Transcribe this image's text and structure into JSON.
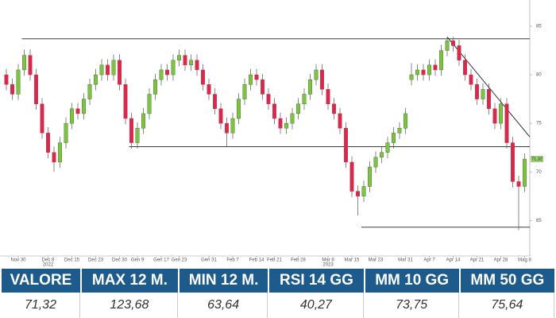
{
  "chart_data": {
    "type": "candlestick",
    "categories": [
      null,
      null,
      "Nov 30",
      null,
      null,
      null,
      null,
      "Dec 8",
      null,
      null,
      null,
      "Dec 15",
      null,
      null,
      null,
      "Dec 23",
      null,
      null,
      null,
      "Dec 30",
      null,
      null,
      "Gen 9",
      null,
      null,
      null,
      "Gen 17",
      null,
      null,
      "Gen 23",
      null,
      null,
      null,
      null,
      "Gen 31",
      null,
      null,
      null,
      "Feb 7",
      null,
      null,
      null,
      "Feb 14",
      null,
      null,
      "Feb 21",
      null,
      null,
      null,
      "Feb 28",
      null,
      null,
      null,
      null,
      "Mar 8",
      null,
      null,
      null,
      "Mar 15",
      null,
      null,
      null,
      "Mar 23",
      null,
      null,
      null,
      null,
      "Mar 31",
      null,
      null,
      null,
      "Apr 7",
      null,
      null,
      null,
      "Apr 14",
      null,
      null,
      null,
      "Apr 21",
      null,
      null,
      null,
      "Apr 28",
      null,
      null,
      null,
      "Mag 8"
    ],
    "year_labels": [
      {
        "index": 7,
        "label": "2022"
      },
      {
        "index": 54,
        "label": "2023"
      }
    ],
    "open": [
      80.0,
      79.0,
      78.0,
      80.5,
      82.0,
      80.0,
      77.0,
      74.0,
      72.0,
      71.0,
      73.0,
      75.0,
      76.5,
      76.0,
      77.5,
      79.0,
      80.0,
      81.0,
      80.0,
      81.5,
      79.0,
      75.5,
      73.0,
      74.5,
      76.0,
      78.0,
      79.5,
      80.5,
      80.0,
      81.5,
      82.0,
      81.0,
      81.5,
      80.5,
      79.0,
      78.0,
      76.5,
      75.0,
      74.0,
      75.5,
      77.5,
      79.0,
      80.0,
      79.5,
      78.0,
      77.0,
      75.5,
      74.5,
      75.0,
      76.0,
      77.0,
      78.0,
      79.5,
      80.5,
      78.5,
      77.0,
      76.0,
      74.5,
      71.0,
      68.0,
      67.5,
      68.5,
      70.5,
      71.5,
      72.0,
      73.0,
      74.0,
      74.5,
      79.5,
      80.0,
      80.5,
      80.0,
      81.0,
      80.5,
      82.5,
      83.5,
      83.0,
      81.5,
      80.0,
      79.0,
      77.5,
      78.5,
      76.5,
      75.0,
      77.0,
      73.0,
      69.0,
      68.5
    ],
    "high": [
      80.6,
      79.6,
      81.1,
      82.6,
      82.6,
      80.6,
      77.6,
      74.6,
      72.6,
      73.6,
      75.6,
      77.1,
      77.1,
      78.1,
      79.6,
      80.6,
      81.6,
      81.6,
      82.1,
      82.1,
      79.6,
      76.1,
      75.1,
      76.6,
      78.6,
      80.1,
      81.1,
      81.1,
      82.1,
      82.6,
      82.6,
      82.1,
      82.1,
      81.1,
      79.6,
      78.6,
      77.1,
      75.6,
      76.1,
      78.1,
      79.6,
      80.6,
      80.6,
      80.1,
      78.6,
      77.6,
      76.1,
      75.6,
      76.6,
      77.6,
      78.6,
      80.1,
      81.1,
      81.1,
      79.1,
      77.6,
      76.6,
      75.1,
      71.6,
      68.6,
      69.1,
      71.1,
      72.1,
      72.6,
      73.6,
      74.6,
      75.1,
      76.6,
      81.2,
      81.1,
      81.1,
      81.6,
      81.6,
      83.1,
      83.9,
      83.9,
      83.6,
      82.1,
      80.6,
      79.6,
      79.1,
      79.1,
      77.1,
      77.6,
      77.6,
      73.6,
      69.6,
      71.9
    ],
    "low": [
      78.4,
      77.4,
      77.4,
      79.9,
      79.4,
      76.4,
      73.4,
      71.4,
      70.0,
      70.4,
      72.4,
      74.4,
      75.4,
      75.4,
      76.9,
      78.4,
      79.4,
      79.4,
      79.4,
      78.4,
      74.9,
      72.4,
      72.4,
      73.9,
      75.4,
      77.4,
      78.9,
      79.4,
      79.4,
      80.9,
      80.4,
      80.4,
      79.9,
      78.4,
      77.4,
      75.9,
      74.4,
      72.6,
      73.4,
      74.9,
      76.9,
      78.4,
      78.9,
      77.4,
      76.4,
      74.9,
      73.9,
      73.9,
      74.4,
      75.4,
      76.4,
      77.4,
      78.9,
      77.9,
      76.4,
      75.4,
      73.9,
      70.4,
      67.4,
      65.5,
      66.9,
      67.9,
      69.9,
      70.9,
      71.4,
      72.4,
      73.4,
      73.9,
      78.9,
      79.4,
      79.4,
      79.4,
      79.9,
      79.9,
      81.9,
      82.4,
      80.9,
      79.4,
      78.4,
      76.9,
      76.9,
      75.9,
      74.4,
      74.4,
      72.4,
      68.4,
      64.0,
      67.9
    ],
    "close": [
      79.0,
      78.0,
      80.5,
      82.0,
      80.0,
      77.0,
      74.0,
      72.0,
      71.0,
      73.0,
      75.0,
      76.5,
      76.0,
      77.5,
      79.0,
      80.0,
      81.0,
      80.0,
      81.5,
      79.0,
      75.5,
      73.0,
      74.5,
      76.0,
      78.0,
      79.5,
      80.5,
      80.0,
      81.5,
      82.0,
      81.0,
      81.5,
      80.5,
      79.0,
      78.0,
      76.5,
      75.0,
      74.0,
      75.5,
      77.5,
      79.0,
      80.0,
      79.5,
      78.0,
      77.0,
      75.5,
      74.5,
      75.0,
      76.0,
      77.0,
      78.0,
      79.5,
      80.5,
      78.5,
      77.0,
      76.0,
      74.5,
      71.0,
      68.0,
      67.5,
      68.5,
      70.5,
      71.5,
      72.0,
      73.0,
      74.0,
      74.5,
      76.0,
      80.0,
      80.5,
      80.0,
      81.0,
      80.5,
      82.5,
      83.5,
      83.0,
      81.5,
      80.0,
      79.0,
      77.5,
      78.5,
      76.5,
      75.0,
      77.0,
      73.0,
      69.0,
      68.5,
      71.32
    ],
    "up_color": "#7dc242",
    "down_color": "#d42a4c",
    "last_price": {
      "value": 71.32,
      "label": "71,32"
    },
    "levels": [
      {
        "value": 83.7,
        "from": 3
      },
      {
        "value": 72.6,
        "from": 21
      },
      {
        "value": 64.3,
        "from": 60
      }
    ],
    "trendline": {
      "from": 74,
      "to": 87,
      "start": 83.9,
      "end": 73.6
    },
    "ylim": [
      61.5,
      87.7
    ],
    "yticks": [
      65,
      70,
      75,
      80,
      85
    ]
  },
  "table": {
    "headers": [
      "VALORE",
      "MAX 12 M.",
      "MIN 12 M.",
      "RSI 14 GG",
      "MM 10 GG",
      "MM 50 GG"
    ],
    "rows": [
      [
        "71,32",
        "123,68",
        "63,64",
        "40,27",
        "73,75",
        "75,64"
      ]
    ]
  }
}
